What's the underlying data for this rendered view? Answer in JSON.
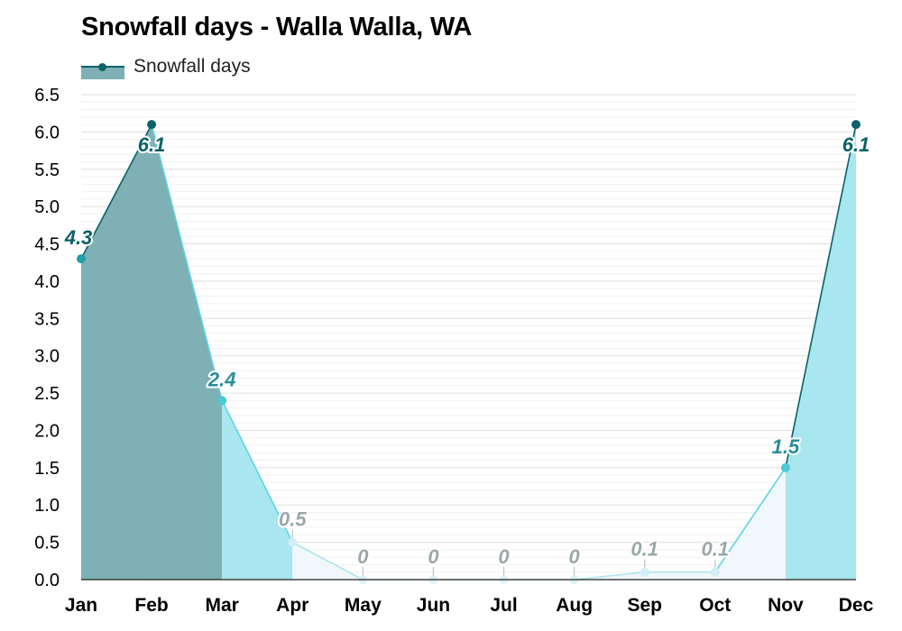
{
  "chart_data": {
    "type": "area",
    "title": "Snowfall days - Walla Walla, WA",
    "legend": {
      "label": "Snowfall days",
      "placement": "top-left"
    },
    "categories": [
      "Jan",
      "Feb",
      "Mar",
      "Apr",
      "May",
      "Jun",
      "Jul",
      "Aug",
      "Sep",
      "Oct",
      "Nov",
      "Dec"
    ],
    "series": [
      {
        "name": "Snowfall days",
        "values": [
          4.3,
          6.1,
          2.4,
          0.5,
          0,
          0,
          0,
          0,
          0.1,
          0.1,
          1.5,
          6.1
        ],
        "labels": [
          "4.3",
          "6.1",
          "2.4",
          "0.5",
          "0",
          "0",
          "0",
          "0",
          "0.1",
          "0.1",
          "1.5",
          "6.1"
        ]
      }
    ],
    "ylim": [
      0,
      6.5
    ],
    "yticks": [
      "0.0",
      "0.5",
      "1.0",
      "1.5",
      "2.0",
      "2.5",
      "3.0",
      "3.5",
      "4.0",
      "4.5",
      "5.0",
      "5.5",
      "6.0",
      "6.5"
    ],
    "xlabel": "",
    "ylabel": "",
    "grid": true,
    "colors": {
      "deep": "#0d6168",
      "deep_fill": "#7eb0b5",
      "medium": "#1fa0aa",
      "light_line": "#5fd3e2",
      "light_fill": "#a8e6f0",
      "pale_line": "#aee3ef",
      "pale_fill": "#f0f8fc",
      "zero_line": "#c6e5ee",
      "grid_major": "#dddddd",
      "grid_minor": "#f1f1f1"
    }
  }
}
